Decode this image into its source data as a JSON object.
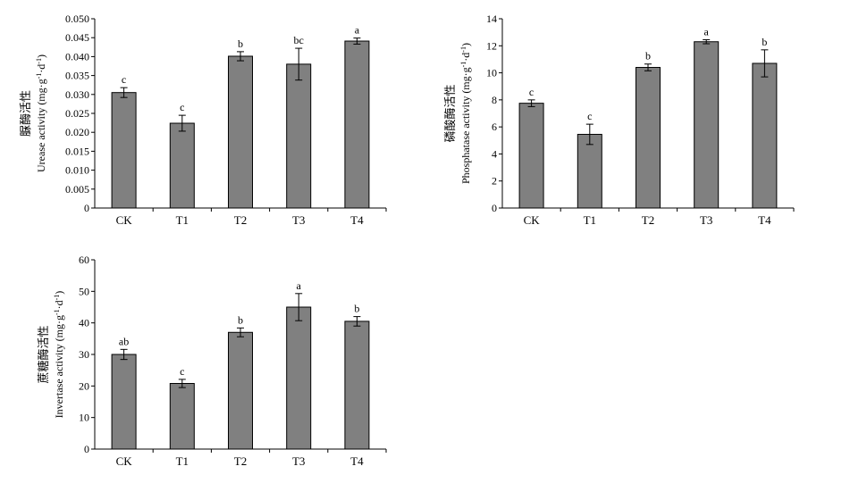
{
  "chart_data": [
    {
      "type": "bar",
      "ylabel_cn": "脲酶活性",
      "ylabel_en": "Urease activity (mg·g",
      "ylabel_sup1": "-1",
      "ylabel_mid": "·d",
      "ylabel_sup2": "-1",
      "ylabel_end": ")",
      "categories": [
        "CK",
        "T1",
        "T2",
        "T3",
        "T4"
      ],
      "values": [
        0.0305,
        0.0224,
        0.0401,
        0.038,
        0.0441
      ],
      "errors": [
        0.0013,
        0.0021,
        0.0012,
        0.0042,
        0.0008
      ],
      "letters": [
        "c",
        "c",
        "b",
        "bc",
        "a"
      ],
      "ylim": [
        0,
        0.05
      ],
      "yticks": [
        "0",
        "0.005",
        "0.010",
        "0.015",
        "0.020",
        "0.025",
        "0.030",
        "0.035",
        "0.040",
        "0.045",
        "0.050"
      ],
      "bar_color": "#808080"
    },
    {
      "type": "bar",
      "ylabel_cn": "磷酸酶活性",
      "ylabel_en": "Phosphatase activity (mg·g",
      "ylabel_sup1": "-1",
      "ylabel_mid": "·d",
      "ylabel_sup2": "-1",
      "ylabel_end": ")",
      "categories": [
        "CK",
        "T1",
        "T2",
        "T3",
        "T4"
      ],
      "values": [
        7.75,
        5.45,
        10.4,
        12.3,
        10.7
      ],
      "errors": [
        0.25,
        0.75,
        0.25,
        0.15,
        1.0
      ],
      "letters": [
        "c",
        "c",
        "b",
        "a",
        "b"
      ],
      "ylim": [
        0,
        14
      ],
      "yticks": [
        "0",
        "2",
        "4",
        "6",
        "8",
        "10",
        "12",
        "14"
      ],
      "bar_color": "#808080"
    },
    {
      "type": "bar",
      "ylabel_cn": "蔗糖酶活性",
      "ylabel_en": "Invertase activity (mg·g",
      "ylabel_sup1": "-1",
      "ylabel_mid": "·d",
      "ylabel_sup2": "-1",
      "ylabel_end": ")",
      "categories": [
        "CK",
        "T1",
        "T2",
        "T3",
        "T4"
      ],
      "values": [
        30.0,
        20.8,
        37.0,
        45.0,
        40.5
      ],
      "errors": [
        1.6,
        1.3,
        1.4,
        4.3,
        1.5
      ],
      "letters": [
        "ab",
        "c",
        "b",
        "a",
        "b"
      ],
      "ylim": [
        0,
        60
      ],
      "yticks": [
        "0",
        "10",
        "20",
        "30",
        "40",
        "50",
        "60"
      ],
      "bar_color": "#808080"
    }
  ]
}
